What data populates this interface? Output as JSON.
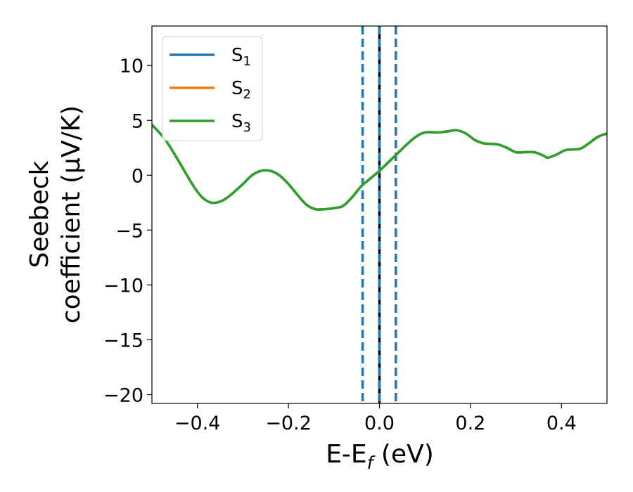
{
  "chart_data": {
    "type": "line",
    "xlabel": {
      "base": "E-E",
      "sub": "f",
      "tail": " (eV)"
    },
    "ylabel": {
      "line1": "Seebeck",
      "line2": "coefficient  (μV/K)"
    },
    "xlim": [
      -0.5,
      0.5
    ],
    "ylim": [
      -20.8,
      13.6
    ],
    "xticks": [
      -0.4,
      -0.2,
      0.0,
      0.2,
      0.4
    ],
    "xtick_labels": [
      "−0.4",
      "−0.2",
      "0.0",
      "0.2",
      "0.4"
    ],
    "yticks": [
      10,
      5,
      0,
      -5,
      -10,
      -15,
      -20
    ],
    "ytick_labels": [
      "10",
      "5",
      "0",
      "−5",
      "−10",
      "−15",
      "−20"
    ],
    "legend_position": "top-left",
    "grid": false,
    "series": [
      {
        "name": "S",
        "sub": "1",
        "color": "#1f77b4",
        "points": [
          [
            -0.5,
            4.6
          ],
          [
            -0.47,
            3.2
          ],
          [
            -0.44,
            1.2
          ],
          [
            -0.41,
            -0.9
          ],
          [
            -0.39,
            -2.0
          ],
          [
            -0.37,
            -2.5
          ],
          [
            -0.35,
            -2.4
          ],
          [
            -0.33,
            -1.9
          ],
          [
            -0.3,
            -0.8
          ],
          [
            -0.28,
            0.0
          ],
          [
            -0.26,
            0.4
          ],
          [
            -0.24,
            0.4
          ],
          [
            -0.22,
            0.0
          ],
          [
            -0.2,
            -0.8
          ],
          [
            -0.18,
            -1.8
          ],
          [
            -0.16,
            -2.7
          ],
          [
            -0.14,
            -3.1
          ],
          [
            -0.12,
            -3.1
          ],
          [
            -0.1,
            -3.0
          ],
          [
            -0.08,
            -2.8
          ],
          [
            -0.06,
            -2.0
          ],
          [
            -0.04,
            -1.0
          ],
          [
            -0.02,
            -0.3
          ],
          [
            0.0,
            0.4
          ],
          [
            0.02,
            1.2
          ],
          [
            0.04,
            2.0
          ],
          [
            0.06,
            2.8
          ],
          [
            0.08,
            3.5
          ],
          [
            0.1,
            3.9
          ],
          [
            0.13,
            3.9
          ],
          [
            0.15,
            4.0
          ],
          [
            0.17,
            4.1
          ],
          [
            0.19,
            3.8
          ],
          [
            0.21,
            3.2
          ],
          [
            0.23,
            2.9
          ],
          [
            0.26,
            2.8
          ],
          [
            0.28,
            2.5
          ],
          [
            0.3,
            2.1
          ],
          [
            0.32,
            2.1
          ],
          [
            0.34,
            2.1
          ],
          [
            0.36,
            1.8
          ],
          [
            0.37,
            1.6
          ],
          [
            0.39,
            1.9
          ],
          [
            0.41,
            2.3
          ],
          [
            0.44,
            2.4
          ],
          [
            0.46,
            2.9
          ],
          [
            0.48,
            3.5
          ],
          [
            0.5,
            3.8
          ]
        ]
      },
      {
        "name": "S",
        "sub": "2",
        "color": "#ff7f0e",
        "points": [
          [
            -0.5,
            4.6
          ],
          [
            -0.47,
            3.2
          ],
          [
            -0.44,
            1.2
          ],
          [
            -0.41,
            -0.9
          ],
          [
            -0.39,
            -2.0
          ],
          [
            -0.37,
            -2.5
          ],
          [
            -0.35,
            -2.4
          ],
          [
            -0.33,
            -1.9
          ],
          [
            -0.3,
            -0.8
          ],
          [
            -0.28,
            0.0
          ],
          [
            -0.26,
            0.4
          ],
          [
            -0.24,
            0.4
          ],
          [
            -0.22,
            0.0
          ],
          [
            -0.2,
            -0.8
          ],
          [
            -0.18,
            -1.8
          ],
          [
            -0.16,
            -2.7
          ],
          [
            -0.14,
            -3.1
          ],
          [
            -0.12,
            -3.1
          ],
          [
            -0.1,
            -3.0
          ],
          [
            -0.08,
            -2.8
          ],
          [
            -0.06,
            -2.0
          ],
          [
            -0.04,
            -1.0
          ],
          [
            -0.02,
            -0.3
          ],
          [
            0.0,
            0.4
          ],
          [
            0.02,
            1.2
          ],
          [
            0.04,
            2.0
          ],
          [
            0.06,
            2.8
          ],
          [
            0.08,
            3.5
          ],
          [
            0.1,
            3.9
          ],
          [
            0.13,
            3.9
          ],
          [
            0.15,
            4.0
          ],
          [
            0.17,
            4.1
          ],
          [
            0.19,
            3.8
          ],
          [
            0.21,
            3.2
          ],
          [
            0.23,
            2.9
          ],
          [
            0.26,
            2.8
          ],
          [
            0.28,
            2.5
          ],
          [
            0.3,
            2.1
          ],
          [
            0.32,
            2.1
          ],
          [
            0.34,
            2.1
          ],
          [
            0.36,
            1.8
          ],
          [
            0.37,
            1.6
          ],
          [
            0.39,
            1.9
          ],
          [
            0.41,
            2.3
          ],
          [
            0.44,
            2.4
          ],
          [
            0.46,
            2.9
          ],
          [
            0.48,
            3.5
          ],
          [
            0.5,
            3.8
          ]
        ]
      },
      {
        "name": "S",
        "sub": "3",
        "color": "#2ca02c",
        "points": [
          [
            -0.5,
            4.6
          ],
          [
            -0.47,
            3.2
          ],
          [
            -0.44,
            1.2
          ],
          [
            -0.41,
            -0.9
          ],
          [
            -0.39,
            -2.0
          ],
          [
            -0.37,
            -2.5
          ],
          [
            -0.35,
            -2.4
          ],
          [
            -0.33,
            -1.9
          ],
          [
            -0.3,
            -0.8
          ],
          [
            -0.28,
            0.0
          ],
          [
            -0.26,
            0.4
          ],
          [
            -0.24,
            0.4
          ],
          [
            -0.22,
            0.0
          ],
          [
            -0.2,
            -0.8
          ],
          [
            -0.18,
            -1.8
          ],
          [
            -0.16,
            -2.7
          ],
          [
            -0.14,
            -3.1
          ],
          [
            -0.12,
            -3.1
          ],
          [
            -0.1,
            -3.0
          ],
          [
            -0.08,
            -2.8
          ],
          [
            -0.06,
            -2.0
          ],
          [
            -0.04,
            -1.0
          ],
          [
            -0.02,
            -0.3
          ],
          [
            0.0,
            0.4
          ],
          [
            0.02,
            1.2
          ],
          [
            0.04,
            2.0
          ],
          [
            0.06,
            2.8
          ],
          [
            0.08,
            3.5
          ],
          [
            0.1,
            3.9
          ],
          [
            0.13,
            3.9
          ],
          [
            0.15,
            4.0
          ],
          [
            0.17,
            4.1
          ],
          [
            0.19,
            3.8
          ],
          [
            0.21,
            3.2
          ],
          [
            0.23,
            2.9
          ],
          [
            0.26,
            2.8
          ],
          [
            0.28,
            2.5
          ],
          [
            0.3,
            2.1
          ],
          [
            0.32,
            2.1
          ],
          [
            0.34,
            2.1
          ],
          [
            0.36,
            1.8
          ],
          [
            0.37,
            1.6
          ],
          [
            0.39,
            1.9
          ],
          [
            0.41,
            2.3
          ],
          [
            0.44,
            2.4
          ],
          [
            0.46,
            2.9
          ],
          [
            0.48,
            3.5
          ],
          [
            0.5,
            3.8
          ]
        ]
      }
    ],
    "vlines": [
      {
        "x": 0.0,
        "color": "#000000",
        "style": "solid"
      },
      {
        "x": 0.0,
        "color": "#1f77b4",
        "style": "dashed"
      },
      {
        "x": -0.037,
        "color": "#1f77b4",
        "style": "dashed"
      },
      {
        "x": 0.036,
        "color": "#1f77b4",
        "style": "dashed"
      }
    ]
  }
}
